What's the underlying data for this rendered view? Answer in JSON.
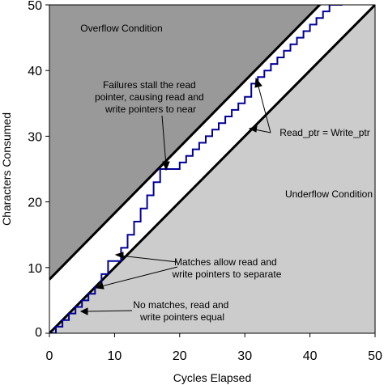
{
  "chart_data": {
    "type": "line",
    "xlabel": "Cycles Elapsed",
    "ylabel": "Characters Consumed",
    "xlim": [
      0,
      50
    ],
    "ylim": [
      0,
      50
    ],
    "x_ticks": [
      "0",
      "10",
      "20",
      "30",
      "40",
      "50"
    ],
    "y_ticks": [
      "0",
      "10",
      "20",
      "30",
      "40",
      "50"
    ],
    "grid": false,
    "colors": {
      "overflow_region": "#999999",
      "underflow_region": "#cccccc",
      "band": "#ffffff",
      "boundary": "#000000",
      "step_series": "#000099"
    },
    "boundaries": [
      {
        "x": [
          0,
          41.5
        ],
        "y": [
          8.2,
          50
        ]
      },
      {
        "x": [
          0,
          50
        ],
        "y": [
          0,
          50
        ]
      }
    ],
    "series": [
      {
        "style": "step",
        "steps": [
          [
            0,
            0
          ],
          [
            1,
            1
          ],
          [
            2,
            2
          ],
          [
            3,
            3
          ],
          [
            4,
            4
          ],
          [
            5,
            5
          ],
          [
            6,
            6
          ],
          [
            7,
            7
          ],
          [
            8,
            9
          ],
          [
            9,
            11
          ],
          [
            10,
            11
          ],
          [
            11,
            13
          ],
          [
            12,
            15
          ],
          [
            13,
            17
          ],
          [
            14,
            19
          ],
          [
            15,
            21
          ],
          [
            16,
            23
          ],
          [
            17,
            25
          ],
          [
            18,
            25
          ],
          [
            19,
            25
          ],
          [
            20,
            26
          ],
          [
            21,
            27
          ],
          [
            22,
            28
          ],
          [
            23,
            29
          ],
          [
            24,
            30
          ],
          [
            25,
            31
          ],
          [
            26,
            32
          ],
          [
            27,
            33
          ],
          [
            28,
            34
          ],
          [
            29,
            35
          ],
          [
            30,
            36
          ],
          [
            31,
            38
          ],
          [
            32,
            39
          ],
          [
            33,
            40
          ],
          [
            34,
            41
          ],
          [
            35,
            42
          ],
          [
            36,
            43
          ],
          [
            37,
            44
          ],
          [
            38,
            45
          ],
          [
            39,
            46
          ],
          [
            40,
            47
          ],
          [
            41,
            48
          ],
          [
            42,
            49
          ],
          [
            43,
            50
          ],
          [
            45,
            50
          ]
        ]
      }
    ],
    "region_labels": [
      {
        "text": "Overflow Condition"
      },
      {
        "text": "Underflow Condition"
      }
    ],
    "annotations": [
      {
        "lines": [
          "Failures stall the read",
          "pointer, causing read and",
          "write pointers to near"
        ]
      },
      {
        "lines": [
          "Read_ptr = Write_ptr"
        ]
      },
      {
        "lines": [
          "Matches allow read and",
          "write pointers to separate"
        ]
      },
      {
        "lines": [
          "No matches, read and",
          "write pointers equal"
        ]
      }
    ]
  }
}
